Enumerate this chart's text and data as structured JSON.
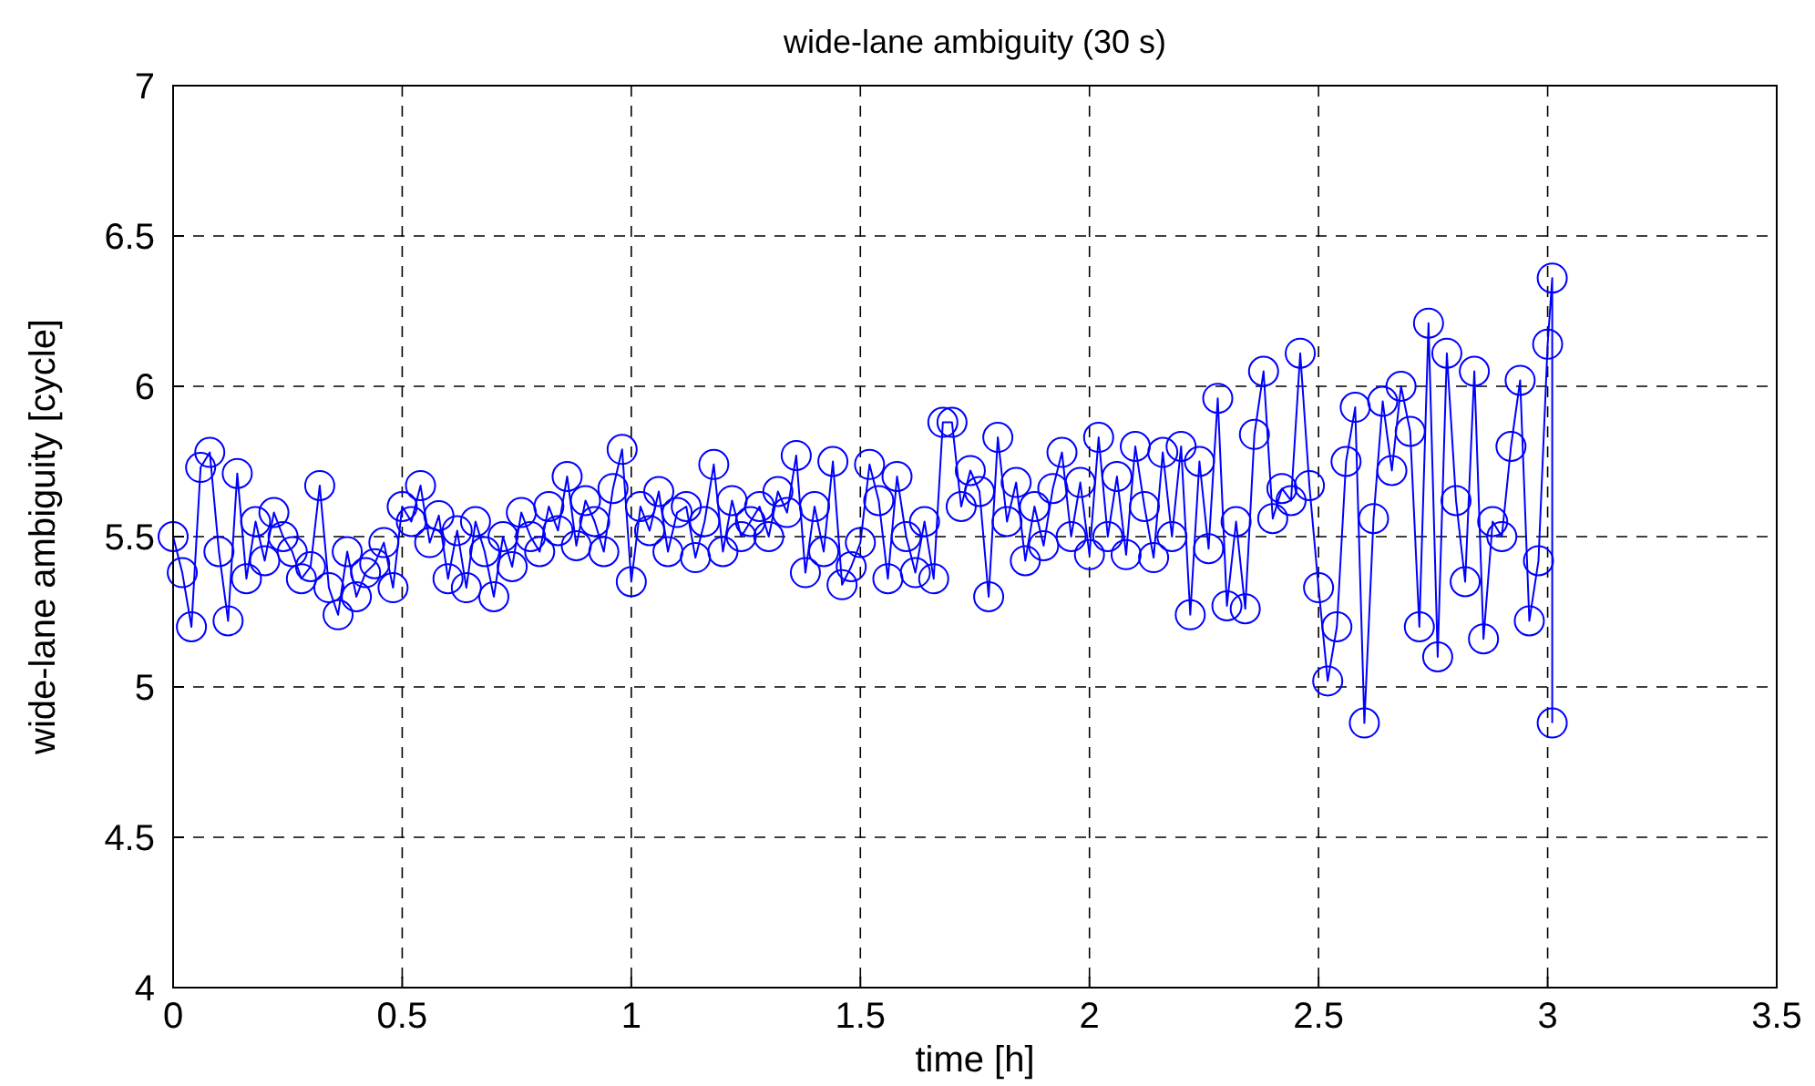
{
  "chart_data": {
    "type": "line",
    "title": "wide-lane ambiguity (30 s)",
    "xlabel": "time [h]",
    "ylabel": "wide-lane ambiguity [cycle]",
    "xlim": [
      0,
      3.5
    ],
    "xticks": [
      0,
      0.5,
      1,
      1.5,
      2,
      2.5,
      3,
      3.5
    ],
    "ylim": [
      4,
      7
    ],
    "yticks": [
      4,
      4.5,
      5,
      5.5,
      6,
      6.5,
      7
    ],
    "grid": true,
    "marker": "circle",
    "line_style": "solid",
    "series": [
      {
        "color": "#0000ff",
        "x": [
          0,
          0.02,
          0.04,
          0.06,
          0.08,
          0.1,
          0.12,
          0.14,
          0.16,
          0.18,
          0.2,
          0.22,
          0.24,
          0.26,
          0.28,
          0.3,
          0.32,
          0.34,
          0.36,
          0.38,
          0.4,
          0.42,
          0.44,
          0.46,
          0.48,
          0.5,
          0.52,
          0.54,
          0.56,
          0.58,
          0.6,
          0.62,
          0.64,
          0.66,
          0.68,
          0.7,
          0.72,
          0.74,
          0.76,
          0.78,
          0.8,
          0.82,
          0.84,
          0.86,
          0.88,
          0.9,
          0.92,
          0.94,
          0.96,
          0.98,
          1,
          1.02,
          1.04,
          1.06,
          1.08,
          1.1,
          1.12,
          1.14,
          1.16,
          1.18,
          1.2,
          1.22,
          1.24,
          1.26,
          1.28,
          1.3,
          1.32,
          1.34,
          1.36,
          1.38,
          1.4,
          1.42,
          1.44,
          1.46,
          1.48,
          1.5,
          1.52,
          1.54,
          1.56,
          1.58,
          1.6,
          1.62,
          1.64,
          1.66,
          1.68,
          1.7,
          1.72,
          1.74,
          1.76,
          1.78,
          1.8,
          1.82,
          1.84,
          1.86,
          1.88,
          1.9,
          1.92,
          1.94,
          1.96,
          1.98,
          2,
          2.02,
          2.04,
          2.06,
          2.08,
          2.1,
          2.12,
          2.14,
          2.16,
          2.18,
          2.2,
          2.22,
          2.24,
          2.26,
          2.28,
          2.3,
          2.32,
          2.34,
          2.36,
          2.38,
          2.4,
          2.42,
          2.44,
          2.46,
          2.48,
          2.5,
          2.52,
          2.54,
          2.56,
          2.58,
          2.6,
          2.62,
          2.64,
          2.66,
          2.68,
          2.7,
          2.72,
          2.74,
          2.76,
          2.78,
          2.8,
          2.82,
          2.84,
          2.86,
          2.88,
          2.9,
          2.92,
          2.94,
          2.96,
          2.98,
          3,
          3.01,
          3.01
        ],
        "values": [
          5.5,
          5.38,
          5.2,
          5.73,
          5.78,
          5.45,
          5.22,
          5.71,
          5.36,
          5.55,
          5.42,
          5.58,
          5.5,
          5.45,
          5.36,
          5.4,
          5.67,
          5.33,
          5.24,
          5.45,
          5.3,
          5.38,
          5.41,
          5.48,
          5.33,
          5.6,
          5.55,
          5.67,
          5.48,
          5.57,
          5.36,
          5.52,
          5.33,
          5.55,
          5.45,
          5.3,
          5.5,
          5.4,
          5.58,
          5.5,
          5.45,
          5.6,
          5.52,
          5.7,
          5.47,
          5.62,
          5.55,
          5.45,
          5.66,
          5.79,
          5.35,
          5.6,
          5.52,
          5.65,
          5.45,
          5.58,
          5.6,
          5.43,
          5.55,
          5.74,
          5.45,
          5.62,
          5.5,
          5.55,
          5.6,
          5.5,
          5.65,
          5.58,
          5.77,
          5.38,
          5.6,
          5.45,
          5.75,
          5.34,
          5.4,
          5.48,
          5.74,
          5.62,
          5.36,
          5.7,
          5.5,
          5.38,
          5.55,
          5.36,
          5.88,
          5.88,
          5.6,
          5.72,
          5.65,
          5.3,
          5.83,
          5.55,
          5.68,
          5.42,
          5.6,
          5.47,
          5.66,
          5.78,
          5.5,
          5.68,
          5.44,
          5.83,
          5.5,
          5.7,
          5.44,
          5.8,
          5.6,
          5.43,
          5.78,
          5.5,
          5.8,
          5.24,
          5.75,
          5.46,
          5.96,
          5.27,
          5.55,
          5.26,
          5.84,
          6.05,
          5.56,
          5.66,
          5.62,
          6.11,
          5.67,
          5.33,
          5.02,
          5.2,
          5.75,
          5.93,
          4.88,
          5.56,
          5.95,
          5.72,
          6,
          5.85,
          5.2,
          6.21,
          5.1,
          6.11,
          5.62,
          5.35,
          6.05,
          5.16,
          5.55,
          5.5,
          5.8,
          6.02,
          5.22,
          5.42,
          6.14,
          6.36,
          4.88
        ]
      }
    ]
  }
}
